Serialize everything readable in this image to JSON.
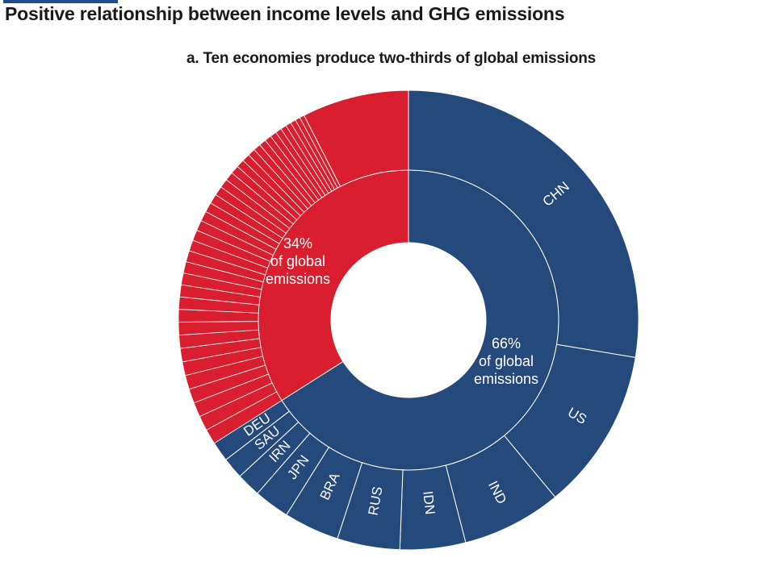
{
  "figure": {
    "title": "Positive relationship between income levels and GHG emissions"
  },
  "chart_data": {
    "type": "sunburst",
    "title": "a. Ten economies produce two-thirds of global emissions",
    "colors": {
      "top_ten": "#244a7c",
      "rest": "#d91f2f",
      "separator": "#ffffff"
    },
    "inner_ring": [
      {
        "name": "top_ten",
        "value": 66,
        "label_pct": "66%",
        "label_line2": "of global",
        "label_line3": "emissions"
      },
      {
        "name": "rest",
        "value": 34,
        "label_pct": "34%",
        "label_line2": "of global",
        "label_line3": "emissions"
      }
    ],
    "outer_ring": {
      "economies": [
        {
          "code": "CHN",
          "value": 27.6
        },
        {
          "code": "US",
          "value": 11.4
        },
        {
          "code": "IND",
          "value": 7.0
        },
        {
          "code": "IDN",
          "value": 4.6
        },
        {
          "code": "RUS",
          "value": 4.4
        },
        {
          "code": "BRA",
          "value": 3.9
        },
        {
          "code": "JPN",
          "value": 2.5
        },
        {
          "code": "IRN",
          "value": 1.7
        },
        {
          "code": "SAU",
          "value": 1.5
        },
        {
          "code": "DEU",
          "value": 1.4
        }
      ],
      "rest_large_slice": 7.5,
      "rest_small_slice_count": 38
    }
  }
}
